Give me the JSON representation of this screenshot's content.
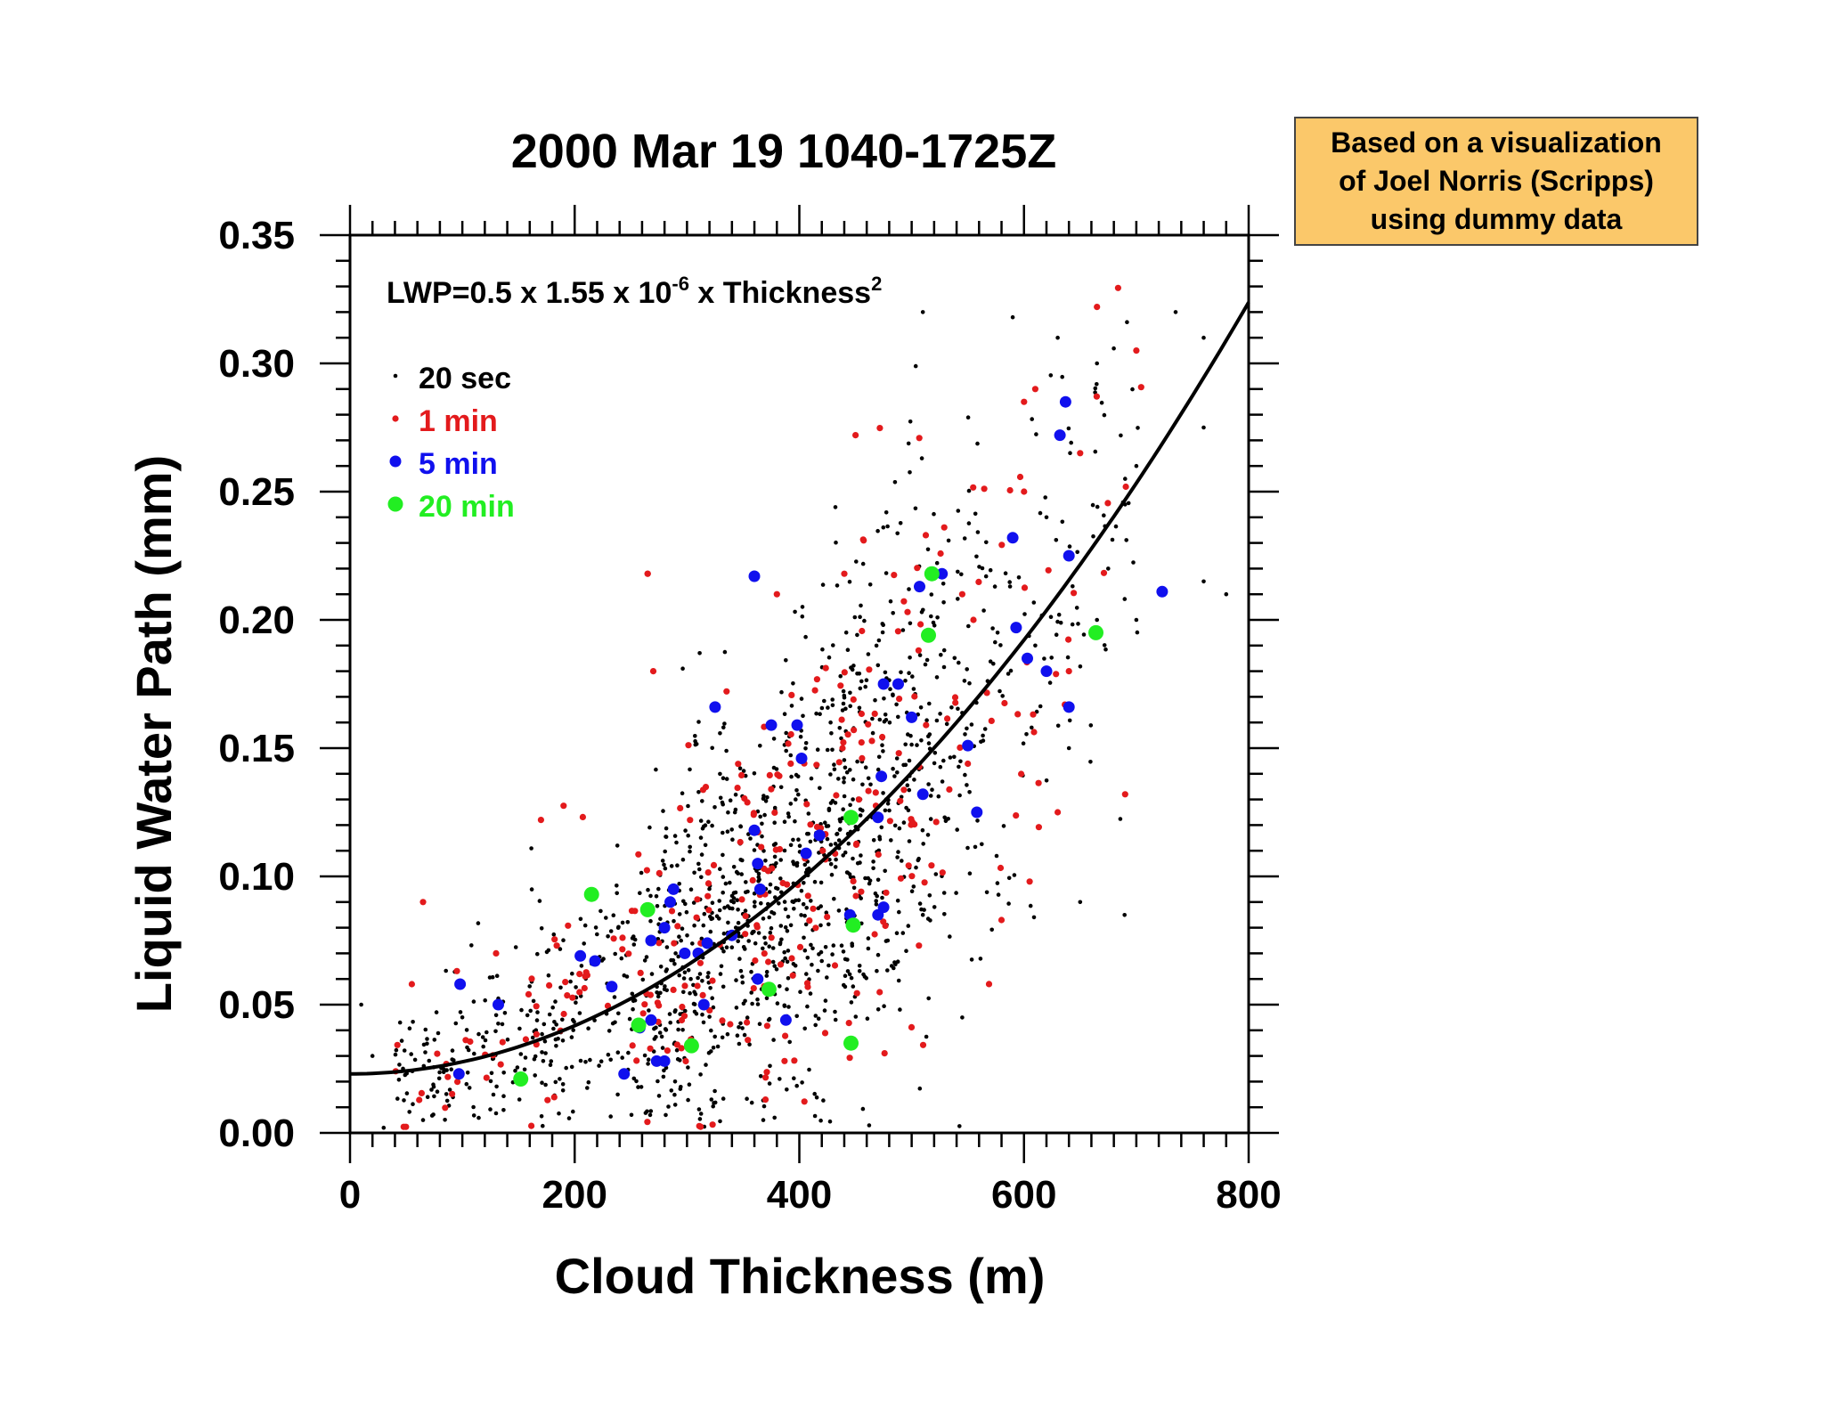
{
  "colors": {
    "background": "#ffffff",
    "axis": "#000000",
    "black_dots": "#000000",
    "red_dots": "#e31a1c",
    "blue_dots": "#1010ee",
    "green_dots": "#22ee22",
    "note_fill": "#fbc86a"
  },
  "note": {
    "lines": [
      "Based on a visualization",
      "of Joel Norris (Scripps)",
      "using dummy data"
    ]
  },
  "chart_data": {
    "type": "scatter",
    "title": "2000 Mar 19 1040-1725Z",
    "xlabel": "Cloud Thickness (m)",
    "ylabel": "Liquid Water Path (mm)",
    "xlim": [
      0,
      800
    ],
    "ylim": [
      0,
      0.35
    ],
    "x_ticks": [
      0,
      200,
      400,
      600,
      800
    ],
    "x_tick_labels": [
      "0",
      "200",
      "400",
      "600",
      "800"
    ],
    "y_ticks": [
      0,
      0.05,
      0.1,
      0.15,
      0.2,
      0.25,
      0.3,
      0.35
    ],
    "y_tick_labels": [
      "0.00",
      "0.05",
      "0.10",
      "0.15",
      "0.20",
      "0.25",
      "0.30",
      "0.35"
    ],
    "x_minor_step": 20,
    "y_minor_step": 0.01,
    "grid": false,
    "legend_position": "top-left",
    "equation": {
      "base": "LWP=0.5 x 1.55 x 10",
      "exponent": "-6",
      "middle": " x Thickness",
      "power": "2"
    },
    "fit_curve": {
      "name": "LWP=0.5 x 1.55 x 10^-6 x Thickness^2",
      "offset": 0.023,
      "coef": 4.7e-07,
      "x_range": [
        0,
        800
      ]
    },
    "series": [
      {
        "name": "20 sec",
        "color": "#000000",
        "marker": "small-dot",
        "count": 1400,
        "seed": 7,
        "points": [
          [
            510,
            0.32
          ],
          [
            590,
            0.318
          ],
          [
            630,
            0.31
          ],
          [
            700,
            0.305
          ],
          [
            735,
            0.32
          ],
          [
            760,
            0.31
          ],
          [
            665,
            0.3
          ],
          [
            780,
            0.21
          ],
          [
            760,
            0.215
          ],
          [
            510,
            0.085
          ],
          [
            760,
            0.275
          ],
          [
            690,
            0.255
          ],
          [
            690,
            0.245
          ],
          [
            665,
            0.2
          ],
          [
            610,
            0.19
          ],
          [
            650,
            0.09
          ],
          [
            545,
            0.045
          ],
          [
            700,
            0.2
          ],
          [
            640,
            0.15
          ],
          [
            620,
            0.24
          ],
          [
            30,
            0.002
          ],
          [
            65,
            0.005
          ],
          [
            10,
            0.05
          ],
          [
            20,
            0.03
          ],
          [
            700,
            0.26
          ],
          [
            675,
            0.22
          ]
        ]
      },
      {
        "name": "1 min",
        "color": "#e31a1c",
        "marker": "dot",
        "count": 300,
        "seed": 11,
        "points": [
          [
            665,
            0.322
          ],
          [
            700,
            0.305
          ],
          [
            610,
            0.29
          ],
          [
            450,
            0.272
          ],
          [
            600,
            0.285
          ],
          [
            650,
            0.265
          ],
          [
            265,
            0.218
          ],
          [
            270,
            0.18
          ],
          [
            265,
            0.218
          ],
          [
            440,
            0.218
          ],
          [
            555,
            0.2
          ],
          [
            380,
            0.21
          ],
          [
            690,
            0.132
          ],
          [
            630,
            0.125
          ],
          [
            605,
            0.098
          ],
          [
            580,
            0.083
          ],
          [
            170,
            0.122
          ],
          [
            65,
            0.09
          ],
          [
            55,
            0.058
          ],
          [
            130,
            0.07
          ],
          [
            405,
            0.107
          ],
          [
            640,
            0.18
          ],
          [
            600,
            0.25
          ],
          [
            545,
            0.21
          ]
        ]
      },
      {
        "name": "5 min",
        "color": "#1010ee",
        "marker": "medium-dot",
        "points": [
          [
            360,
            0.217
          ],
          [
            325,
            0.166
          ],
          [
            375,
            0.159
          ],
          [
            398,
            0.159
          ],
          [
            402,
            0.146
          ],
          [
            475,
            0.175
          ],
          [
            488,
            0.175
          ],
          [
            500,
            0.162
          ],
          [
            510,
            0.132
          ],
          [
            527,
            0.218
          ],
          [
            507,
            0.213
          ],
          [
            590,
            0.232
          ],
          [
            593,
            0.197
          ],
          [
            637,
            0.285
          ],
          [
            632,
            0.272
          ],
          [
            640,
            0.225
          ],
          [
            603,
            0.185
          ],
          [
            620,
            0.18
          ],
          [
            640,
            0.166
          ],
          [
            550,
            0.151
          ],
          [
            558,
            0.125
          ],
          [
            473,
            0.139
          ],
          [
            470,
            0.123
          ],
          [
            723,
            0.211
          ],
          [
            360,
            0.118
          ],
          [
            363,
            0.105
          ],
          [
            365,
            0.095
          ],
          [
            418,
            0.116
          ],
          [
            406,
            0.109
          ],
          [
            288,
            0.095
          ],
          [
            285,
            0.09
          ],
          [
            280,
            0.08
          ],
          [
            268,
            0.075
          ],
          [
            318,
            0.074
          ],
          [
            310,
            0.07
          ],
          [
            298,
            0.07
          ],
          [
            340,
            0.077
          ],
          [
            205,
            0.069
          ],
          [
            218,
            0.067
          ],
          [
            233,
            0.057
          ],
          [
            98,
            0.058
          ],
          [
            132,
            0.05
          ],
          [
            97,
            0.023
          ],
          [
            258,
            0.041
          ],
          [
            268,
            0.044
          ],
          [
            244,
            0.023
          ],
          [
            273,
            0.028
          ],
          [
            280,
            0.028
          ],
          [
            315,
            0.05
          ],
          [
            363,
            0.06
          ],
          [
            388,
            0.044
          ],
          [
            475,
            0.088
          ],
          [
            470,
            0.085
          ],
          [
            445,
            0.085
          ]
        ]
      },
      {
        "name": "20 min",
        "color": "#22ee22",
        "marker": "large-dot",
        "points": [
          [
            518,
            0.218
          ],
          [
            515,
            0.194
          ],
          [
            664,
            0.195
          ],
          [
            446,
            0.123
          ],
          [
            448,
            0.081
          ],
          [
            446,
            0.035
          ],
          [
            215,
            0.093
          ],
          [
            265,
            0.087
          ],
          [
            257,
            0.042
          ],
          [
            304,
            0.034
          ],
          [
            152,
            0.021
          ],
          [
            373,
            0.056
          ]
        ]
      }
    ]
  }
}
